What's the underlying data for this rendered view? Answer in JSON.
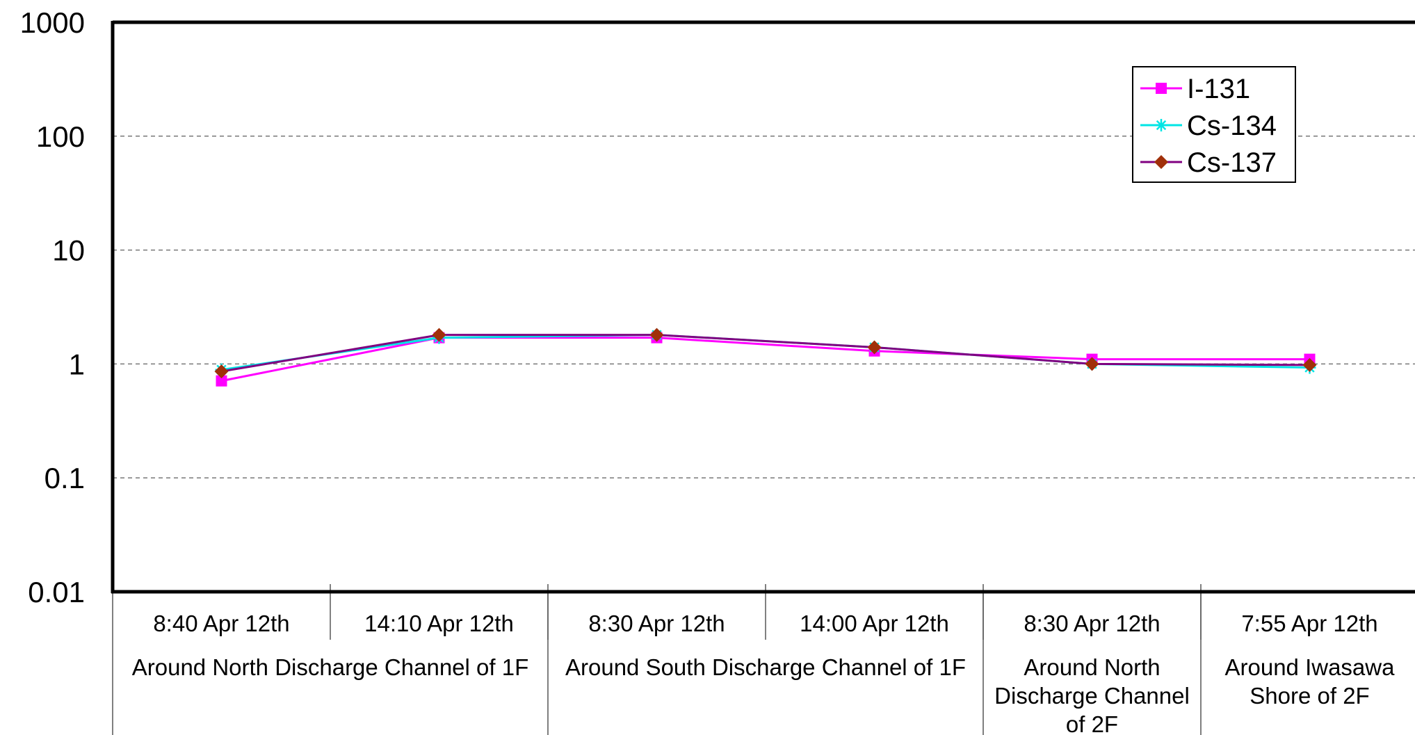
{
  "chart_data": {
    "type": "line",
    "y_scale": "log",
    "ylim": [
      0.01,
      1000
    ],
    "yticks": [
      "1000",
      "100",
      "10",
      "1",
      "0.1",
      "0.01"
    ],
    "grid": "horizontal dashed",
    "legend_placement": "top-right",
    "categories": [
      {
        "time": "8:40 Apr 12th",
        "location": "Around North Discharge Channel of 1F"
      },
      {
        "time": "14:10 Apr 12th",
        "location": "Around North Discharge Channel of 1F"
      },
      {
        "time": "8:30 Apr 12th",
        "location": "Around South Discharge Channel of 1F"
      },
      {
        "time": "14:00 Apr 12th",
        "location": "Around South Discharge Channel of 1F"
      },
      {
        "time": "8:30 Apr 12th",
        "location": "Around North Discharge Channel of 2F"
      },
      {
        "time": "7:55 Apr 12th",
        "location": "Around Iwasawa Shore of 2F"
      }
    ],
    "groups": [
      {
        "label": "Around North Discharge Channel of 1F",
        "lines": [
          "Around North Discharge Channel of 1F"
        ],
        "span": [
          0,
          1
        ]
      },
      {
        "label": "Around South Discharge Channel of 1F",
        "lines": [
          "Around South Discharge Channel of 1F"
        ],
        "span": [
          2,
          3
        ]
      },
      {
        "label": "Around North Discharge Channel of 2F",
        "lines": [
          "Around North",
          "Discharge Channel",
          "of 2F"
        ],
        "span": [
          4,
          4
        ]
      },
      {
        "label": "Around Iwasawa Shore of 2F",
        "lines": [
          "Around Iwasawa",
          "Shore of 2F"
        ],
        "span": [
          5,
          5
        ]
      }
    ],
    "series": [
      {
        "name": "I-131",
        "color": "#FF00FF",
        "marker": "square",
        "values": [
          0.71,
          1.7,
          1.7,
          1.3,
          1.1,
          1.1
        ]
      },
      {
        "name": "Cs-134",
        "color": "#00E5E5",
        "marker": "asterisk",
        "values": [
          0.89,
          1.7,
          1.8,
          1.4,
          1.0,
          0.93
        ]
      },
      {
        "name": "Cs-137",
        "color": "#800080",
        "marker": "diamond",
        "marker_color": "#A0300A",
        "values": [
          0.86,
          1.8,
          1.8,
          1.4,
          1.0,
          0.98
        ]
      }
    ]
  }
}
